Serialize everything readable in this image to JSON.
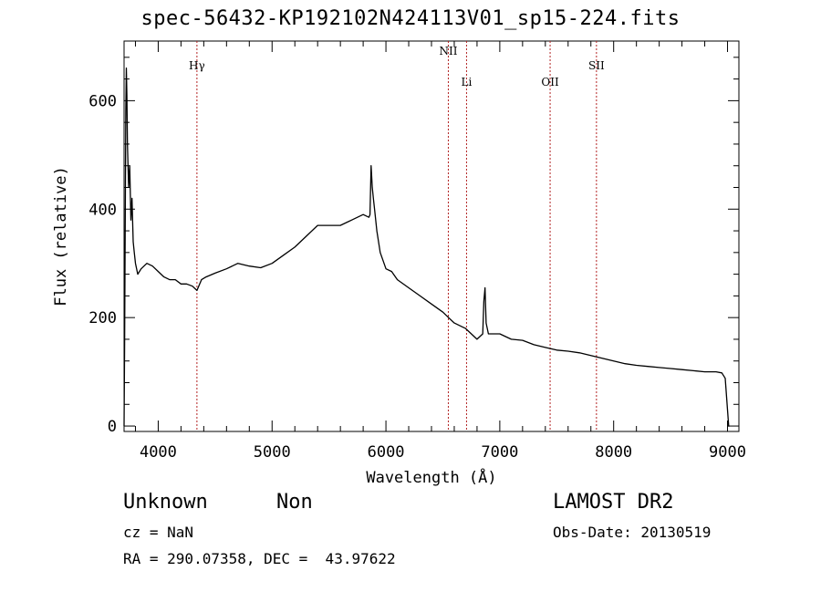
{
  "title": "spec-56432-KP192102N424113V01_sp15-224.fits",
  "info": {
    "class": "Unknown",
    "subclass": "Non",
    "survey": "LAMOST DR2",
    "cz": "cz = NaN",
    "obs_date": "Obs-Date: 20130519",
    "coords": "RA = 290.07358, DEC =  43.97622"
  },
  "chart_data": {
    "type": "line",
    "xlabel": "Wavelength (Å)",
    "ylabel": "Flux (relative)",
    "xlim": [
      3700,
      9100
    ],
    "ylim": [
      -10,
      710
    ],
    "xticks": [
      4000,
      5000,
      6000,
      7000,
      8000,
      9000
    ],
    "yticks": [
      0,
      200,
      400,
      600
    ],
    "grid": false,
    "line_color": "#000000",
    "marker_color": "#b22222",
    "line_markers": [
      {
        "label": "Hγ",
        "x": 4340
      },
      {
        "label": "NII",
        "x": 6548
      },
      {
        "label": "Li",
        "x": 6708
      },
      {
        "label": "OII",
        "x": 7442
      },
      {
        "label": "SII",
        "x": 7849
      }
    ],
    "series": [
      {
        "x": [
          3700,
          3705,
          3710,
          3715,
          3720,
          3725,
          3730,
          3740,
          3750,
          3760,
          3770,
          3780,
          3790,
          3800,
          3820,
          3850,
          3900,
          3950,
          4000,
          4050,
          4100,
          4150,
          4200,
          4250,
          4300,
          4340,
          4380,
          4420,
          4500,
          4600,
          4700,
          4800,
          4900,
          5000,
          5100,
          5200,
          5300,
          5400,
          5500,
          5600,
          5700,
          5800,
          5850,
          5860,
          5870,
          5880,
          5890,
          5900,
          5920,
          5950,
          6000,
          6050,
          6100,
          6200,
          6300,
          6400,
          6500,
          6550,
          6600,
          6700,
          6800,
          6850,
          6860,
          6870,
          6880,
          6900,
          7000,
          7100,
          7200,
          7300,
          7400,
          7500,
          7600,
          7700,
          7800,
          7900,
          8000,
          8100,
          8200,
          8300,
          8400,
          8500,
          8600,
          8700,
          8800,
          8900,
          8950,
          8980,
          9000,
          9010,
          9015
        ],
        "y": [
          0,
          150,
          350,
          580,
          660,
          610,
          520,
          440,
          480,
          380,
          420,
          340,
          320,
          300,
          280,
          290,
          300,
          295,
          285,
          275,
          270,
          270,
          262,
          262,
          258,
          250,
          270,
          275,
          282,
          290,
          300,
          295,
          292,
          300,
          315,
          330,
          350,
          370,
          370,
          370,
          380,
          390,
          385,
          390,
          480,
          440,
          420,
          400,
          360,
          320,
          290,
          285,
          270,
          255,
          240,
          225,
          210,
          200,
          190,
          180,
          160,
          170,
          230,
          255,
          190,
          170,
          170,
          160,
          158,
          150,
          145,
          140,
          138,
          135,
          130,
          125,
          120,
          115,
          112,
          110,
          108,
          106,
          104,
          102,
          100,
          100,
          98,
          88,
          30,
          0,
          0
        ]
      }
    ]
  }
}
